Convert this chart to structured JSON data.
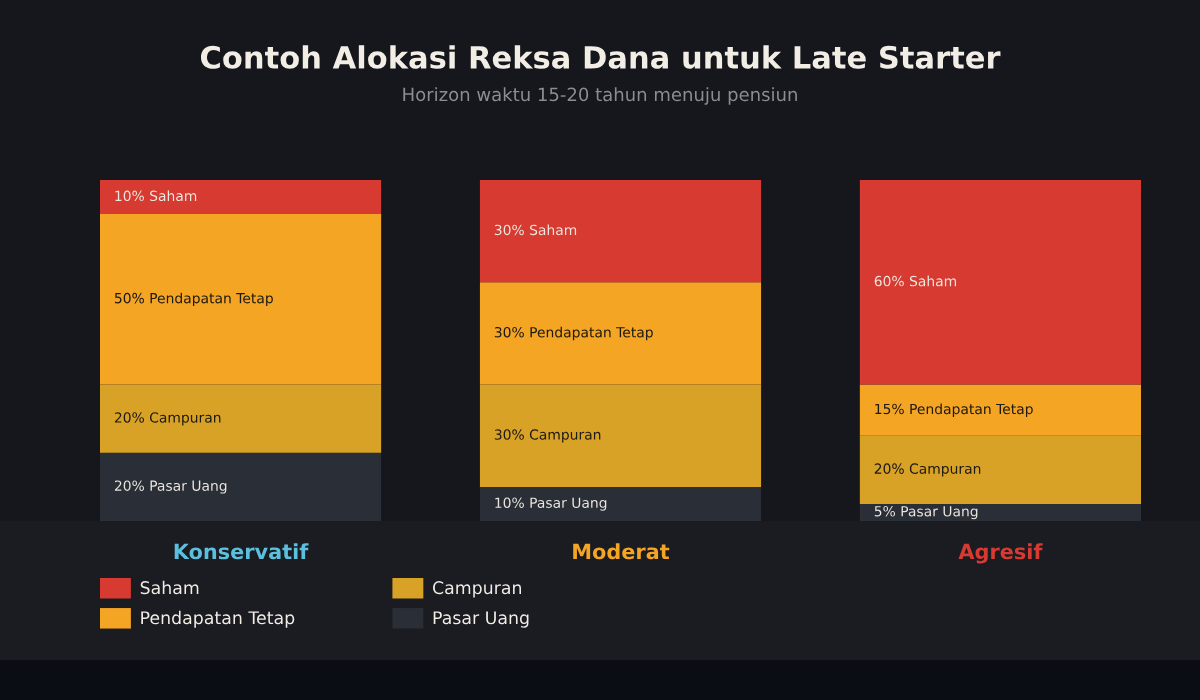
{
  "chart_data": {
    "type": "bar",
    "title": "Contoh Alokasi Reksa Dana untuk Late Starter",
    "subtitle": "Horizon waktu 15-20 tahun menuju pensiun",
    "categories": [
      "Konservatif",
      "Moderat",
      "Agresif"
    ],
    "stacked": true,
    "ylim": [
      0,
      100
    ],
    "tick_labels": "x",
    "legend": "bottom left",
    "series": [
      {
        "name": "Pasar Uang",
        "color": "#2a2e37",
        "values": [
          20,
          10,
          5
        ],
        "value_labels": [
          "20% Pasar Uang",
          "10% Pasar Uang",
          "5% Pasar Uang"
        ]
      },
      {
        "name": "Campuran",
        "color": "#d8a227",
        "values": [
          20,
          30,
          20
        ],
        "value_labels": [
          "20% Campuran",
          "30% Campuran",
          "20% Campuran"
        ]
      },
      {
        "name": "Pendapatan Tetap",
        "color": "#f5a524",
        "values": [
          50,
          30,
          15
        ],
        "value_labels": [
          "50% Pendapatan Tetap",
          "30% Pendapatan Tetap",
          "15% Pendapatan Tetap"
        ]
      },
      {
        "name": "Saham",
        "color": "#d63a31",
        "values": [
          10,
          30,
          60
        ],
        "value_labels": [
          "10% Saham",
          "30% Saham",
          "60% Saham"
        ]
      }
    ]
  }
}
